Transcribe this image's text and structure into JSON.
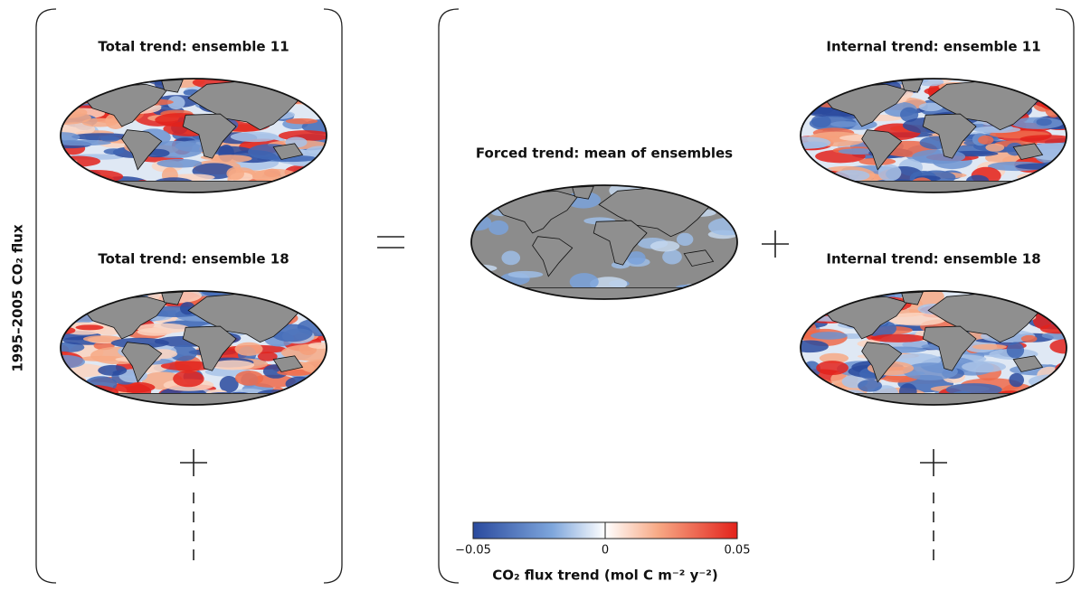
{
  "y_label": "1995–2005 CO₂ flux",
  "panels": [
    {
      "title": "Total trend: ensemble 11"
    },
    {
      "title": "Total trend: ensemble 18"
    },
    {
      "title": "Forced trend: mean of ensembles"
    },
    {
      "title": "Internal trend: ensemble 11"
    },
    {
      "title": "Internal trend: ensemble 18"
    }
  ],
  "colorbar": {
    "label": "CO₂ flux trend (mol C m⁻² y⁻²)",
    "lim": [
      -0.05,
      0.05
    ],
    "ticks": [
      {
        "value": -0.05,
        "label": "−0.05"
      },
      0,
      0.05
    ]
  }
}
